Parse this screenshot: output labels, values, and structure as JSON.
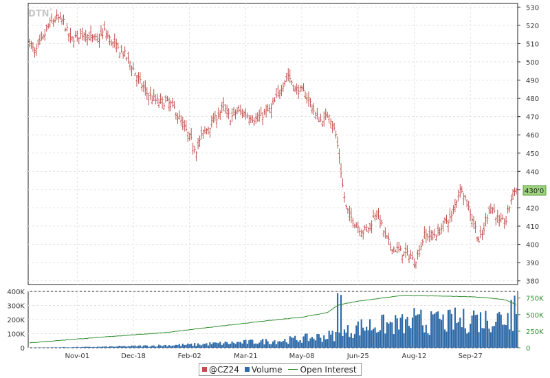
{
  "watermark": "DTN",
  "watermark_mark": "®",
  "legend": {
    "price_label": "@CZ24",
    "volume_label": "Volume",
    "oi_label": "Open Interest",
    "price_color": "#c0504d",
    "volume_color": "#2e6aa8",
    "oi_color": "#2a8a2a"
  },
  "last_price_label": "430'0",
  "chart_data": [
    {
      "type": "ohlc",
      "symbol": "@CZ24",
      "ylim": [
        378,
        532
      ],
      "yticks": [
        380,
        390,
        400,
        410,
        420,
        430,
        440,
        450,
        460,
        470,
        480,
        490,
        500,
        510,
        520,
        530
      ],
      "xticks": [
        "Nov-01",
        "Dec-18",
        "Feb-02",
        "Mar-21",
        "May-08",
        "Jun-25",
        "Aug-12",
        "Sep-27"
      ],
      "grid": true,
      "anchors": [
        [
          0,
          511
        ],
        [
          3,
          505
        ],
        [
          8,
          513
        ],
        [
          12,
          521
        ],
        [
          16,
          524
        ],
        [
          20,
          522
        ],
        [
          24,
          512
        ],
        [
          28,
          514
        ],
        [
          32,
          516
        ],
        [
          36,
          513
        ],
        [
          40,
          512
        ],
        [
          44,
          517
        ],
        [
          48,
          511
        ],
        [
          52,
          507
        ],
        [
          56,
          504
        ],
        [
          60,
          498
        ],
        [
          64,
          490
        ],
        [
          68,
          484
        ],
        [
          72,
          480
        ],
        [
          76,
          478
        ],
        [
          80,
          478
        ],
        [
          84,
          476
        ],
        [
          88,
          469
        ],
        [
          92,
          462
        ],
        [
          96,
          455
        ],
        [
          98,
          452
        ],
        [
          102,
          461
        ],
        [
          106,
          465
        ],
        [
          110,
          470
        ],
        [
          114,
          475
        ],
        [
          118,
          469
        ],
        [
          122,
          473
        ],
        [
          126,
          472
        ],
        [
          130,
          470
        ],
        [
          134,
          468
        ],
        [
          138,
          472
        ],
        [
          142,
          474
        ],
        [
          146,
          482
        ],
        [
          150,
          490
        ],
        [
          152,
          493
        ],
        [
          156,
          485
        ],
        [
          160,
          484
        ],
        [
          164,
          480
        ],
        [
          168,
          471
        ],
        [
          172,
          467
        ],
        [
          176,
          472
        ],
        [
          178,
          466
        ],
        [
          180,
          460
        ],
        [
          182,
          448
        ],
        [
          184,
          432
        ],
        [
          186,
          420
        ],
        [
          188,
          416
        ],
        [
          192,
          411
        ],
        [
          196,
          407
        ],
        [
          200,
          410
        ],
        [
          204,
          419
        ],
        [
          208,
          407
        ],
        [
          212,
          399
        ],
        [
          216,
          397
        ],
        [
          220,
          395
        ],
        [
          224,
          394
        ],
        [
          226,
          390
        ],
        [
          228,
          394
        ],
        [
          232,
          405
        ],
        [
          236,
          405
        ],
        [
          240,
          406
        ],
        [
          244,
          412
        ],
        [
          248,
          415
        ],
        [
          252,
          428
        ],
        [
          254,
          431
        ],
        [
          258,
          420
        ],
        [
          262,
          409
        ],
        [
          264,
          402
        ],
        [
          266,
          405
        ],
        [
          268,
          412
        ],
        [
          270,
          420
        ],
        [
          272,
          420
        ],
        [
          276,
          412
        ],
        [
          280,
          413
        ],
        [
          283,
          425
        ],
        [
          285,
          430
        ]
      ]
    },
    {
      "type": "bar",
      "series_name": "Volume",
      "ylim": [
        0,
        400000
      ],
      "yticks_left": [
        "0",
        "100K",
        "200K",
        "300K",
        "400K"
      ],
      "yticks_right": [
        "0",
        "250K",
        "500K",
        "750K"
      ],
      "oi_ylim": [
        0,
        850000
      ],
      "vol_anchors": [
        [
          0,
          0
        ],
        [
          10,
          2000
        ],
        [
          40,
          6000
        ],
        [
          70,
          14000
        ],
        [
          95,
          22000
        ],
        [
          120,
          35000
        ],
        [
          150,
          52000
        ],
        [
          165,
          70000
        ],
        [
          180,
          90000
        ],
        [
          192,
          160000
        ],
        [
          200,
          180000
        ],
        [
          220,
          190000
        ],
        [
          240,
          205000
        ],
        [
          260,
          220000
        ],
        [
          285,
          250000
        ]
      ],
      "vol_spikes": [
        [
          181,
          388000
        ],
        [
          183,
          375000
        ],
        [
          285,
          370000
        ],
        [
          283,
          340000
        ],
        [
          226,
          282000
        ],
        [
          250,
          285000
        ],
        [
          230,
          270000
        ],
        [
          261,
          265000
        ],
        [
          240,
          258000
        ]
      ],
      "oi_anchors": [
        [
          0,
          75000
        ],
        [
          20,
          115000
        ],
        [
          50,
          175000
        ],
        [
          80,
          230000
        ],
        [
          110,
          320000
        ],
        [
          140,
          410000
        ],
        [
          160,
          460000
        ],
        [
          175,
          530000
        ],
        [
          181,
          640000
        ],
        [
          190,
          690000
        ],
        [
          210,
          760000
        ],
        [
          220,
          790000
        ],
        [
          240,
          780000
        ],
        [
          260,
          770000
        ],
        [
          270,
          750000
        ],
        [
          280,
          720000
        ],
        [
          285,
          660000
        ]
      ]
    }
  ]
}
